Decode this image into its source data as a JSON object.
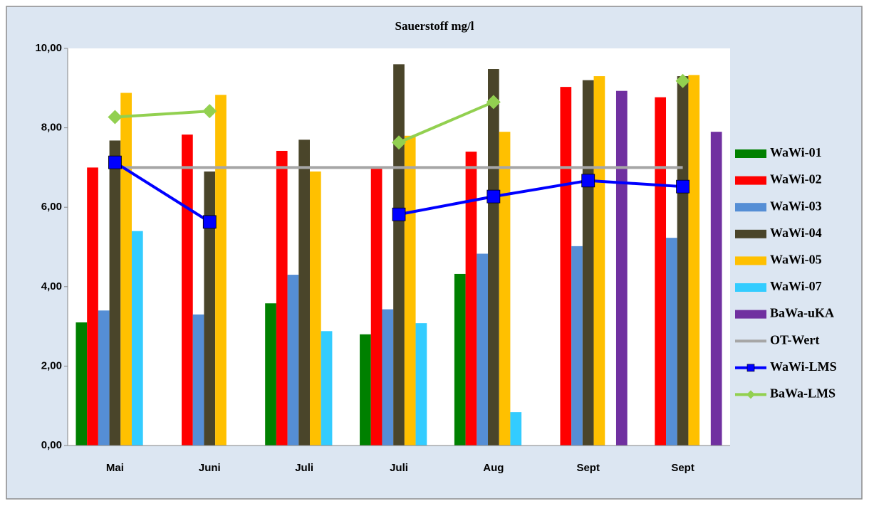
{
  "chart_data": {
    "type": "bar",
    "title": "Sauerstoff mg/l",
    "categories": [
      "Mai",
      "Juni",
      "Juli",
      "Juli",
      "Aug",
      "Sept",
      "Sept"
    ],
    "ylim": [
      0,
      10
    ],
    "yticks": [
      {
        "value": 0,
        "label": "0,00"
      },
      {
        "value": 2,
        "label": "2,00"
      },
      {
        "value": 4,
        "label": "4,00"
      },
      {
        "value": 6,
        "label": "6,00"
      },
      {
        "value": 8,
        "label": "8,00"
      },
      {
        "value": 10,
        "label": "10,00"
      }
    ],
    "grid": false,
    "legend": "right",
    "series": [
      {
        "name": "WaWi-01",
        "type": "bar",
        "color": "#008000",
        "values": [
          3.1,
          null,
          3.58,
          2.8,
          4.32,
          null,
          null
        ]
      },
      {
        "name": "WaWi-02",
        "type": "bar",
        "color": "#ff0000",
        "values": [
          7.0,
          7.83,
          7.42,
          6.97,
          7.4,
          9.03,
          8.77
        ]
      },
      {
        "name": "WaWi-03",
        "type": "bar",
        "color": "#558ed5",
        "values": [
          3.4,
          3.3,
          4.3,
          3.43,
          4.83,
          5.02,
          5.23
        ]
      },
      {
        "name": "WaWi-04",
        "type": "bar",
        "color": "#4a452a",
        "values": [
          7.68,
          6.9,
          7.7,
          9.6,
          9.48,
          9.2,
          9.3
        ]
      },
      {
        "name": "WaWi-05",
        "type": "bar",
        "color": "#ffc000",
        "values": [
          8.88,
          8.83,
          6.9,
          7.8,
          7.9,
          9.3,
          9.33
        ]
      },
      {
        "name": "WaWi-07",
        "type": "bar",
        "color": "#33ccff",
        "values": [
          5.4,
          null,
          2.88,
          3.08,
          0.84,
          null,
          null
        ]
      },
      {
        "name": "BaWa-uKA",
        "type": "bar",
        "color": "#7030a0",
        "values": [
          null,
          null,
          null,
          null,
          null,
          8.93,
          7.9
        ]
      },
      {
        "name": "OT-Wert",
        "type": "line",
        "color": "#a6a6a6",
        "values": [
          7,
          7,
          7,
          7,
          7,
          7,
          7
        ]
      },
      {
        "name": "WaWi-LMS",
        "type": "line",
        "marker": "square",
        "color": "#0000ff",
        "values": [
          7.13,
          5.63,
          null,
          5.82,
          6.27,
          6.67,
          6.52
        ]
      },
      {
        "name": "BaWa-LMS",
        "type": "line",
        "marker": "diamond",
        "color": "#92d050",
        "values": [
          8.27,
          8.42,
          null,
          7.63,
          8.65,
          null,
          9.18
        ]
      }
    ]
  }
}
